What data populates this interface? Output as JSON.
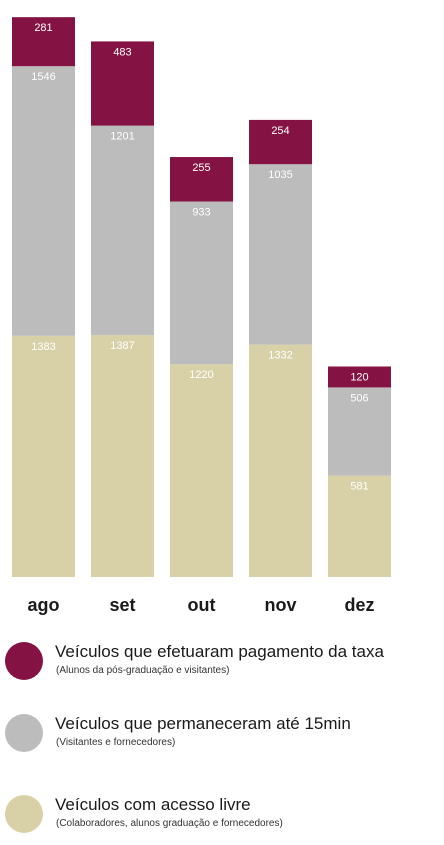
{
  "chart_data": {
    "type": "bar",
    "stacked": true,
    "categories": [
      "ago",
      "set",
      "out",
      "nov",
      "dez"
    ],
    "series": [
      {
        "name": "Veículos com acesso livre",
        "color": "#d8d1a8",
        "values": [
          1383,
          1387,
          1220,
          1332,
          581
        ]
      },
      {
        "name": "Veículos que permaneceram até 15min",
        "color": "#bdbcbc",
        "values": [
          1546,
          1201,
          933,
          1035,
          506
        ]
      },
      {
        "name": "Veículos que efetuaram pagamento da taxa",
        "color": "#841242",
        "values": [
          281,
          483,
          255,
          254,
          120
        ]
      }
    ],
    "grid": false,
    "legend_position": "bottom"
  },
  "legend": [
    {
      "title": "Veículos que efetuaram pagamento da taxa",
      "subtitle": "(Alunos da pós-graduação e visitantes)",
      "color": "#841242"
    },
    {
      "title": "Veículos que permaneceram até 15min",
      "subtitle": "(Visitantes e fornecedores)",
      "color": "#bdbcbc"
    },
    {
      "title": "Veículos com acesso livre",
      "subtitle": "(Colaboradores, alunos graduação e fornecedores)",
      "color": "#d8d1a8"
    }
  ]
}
